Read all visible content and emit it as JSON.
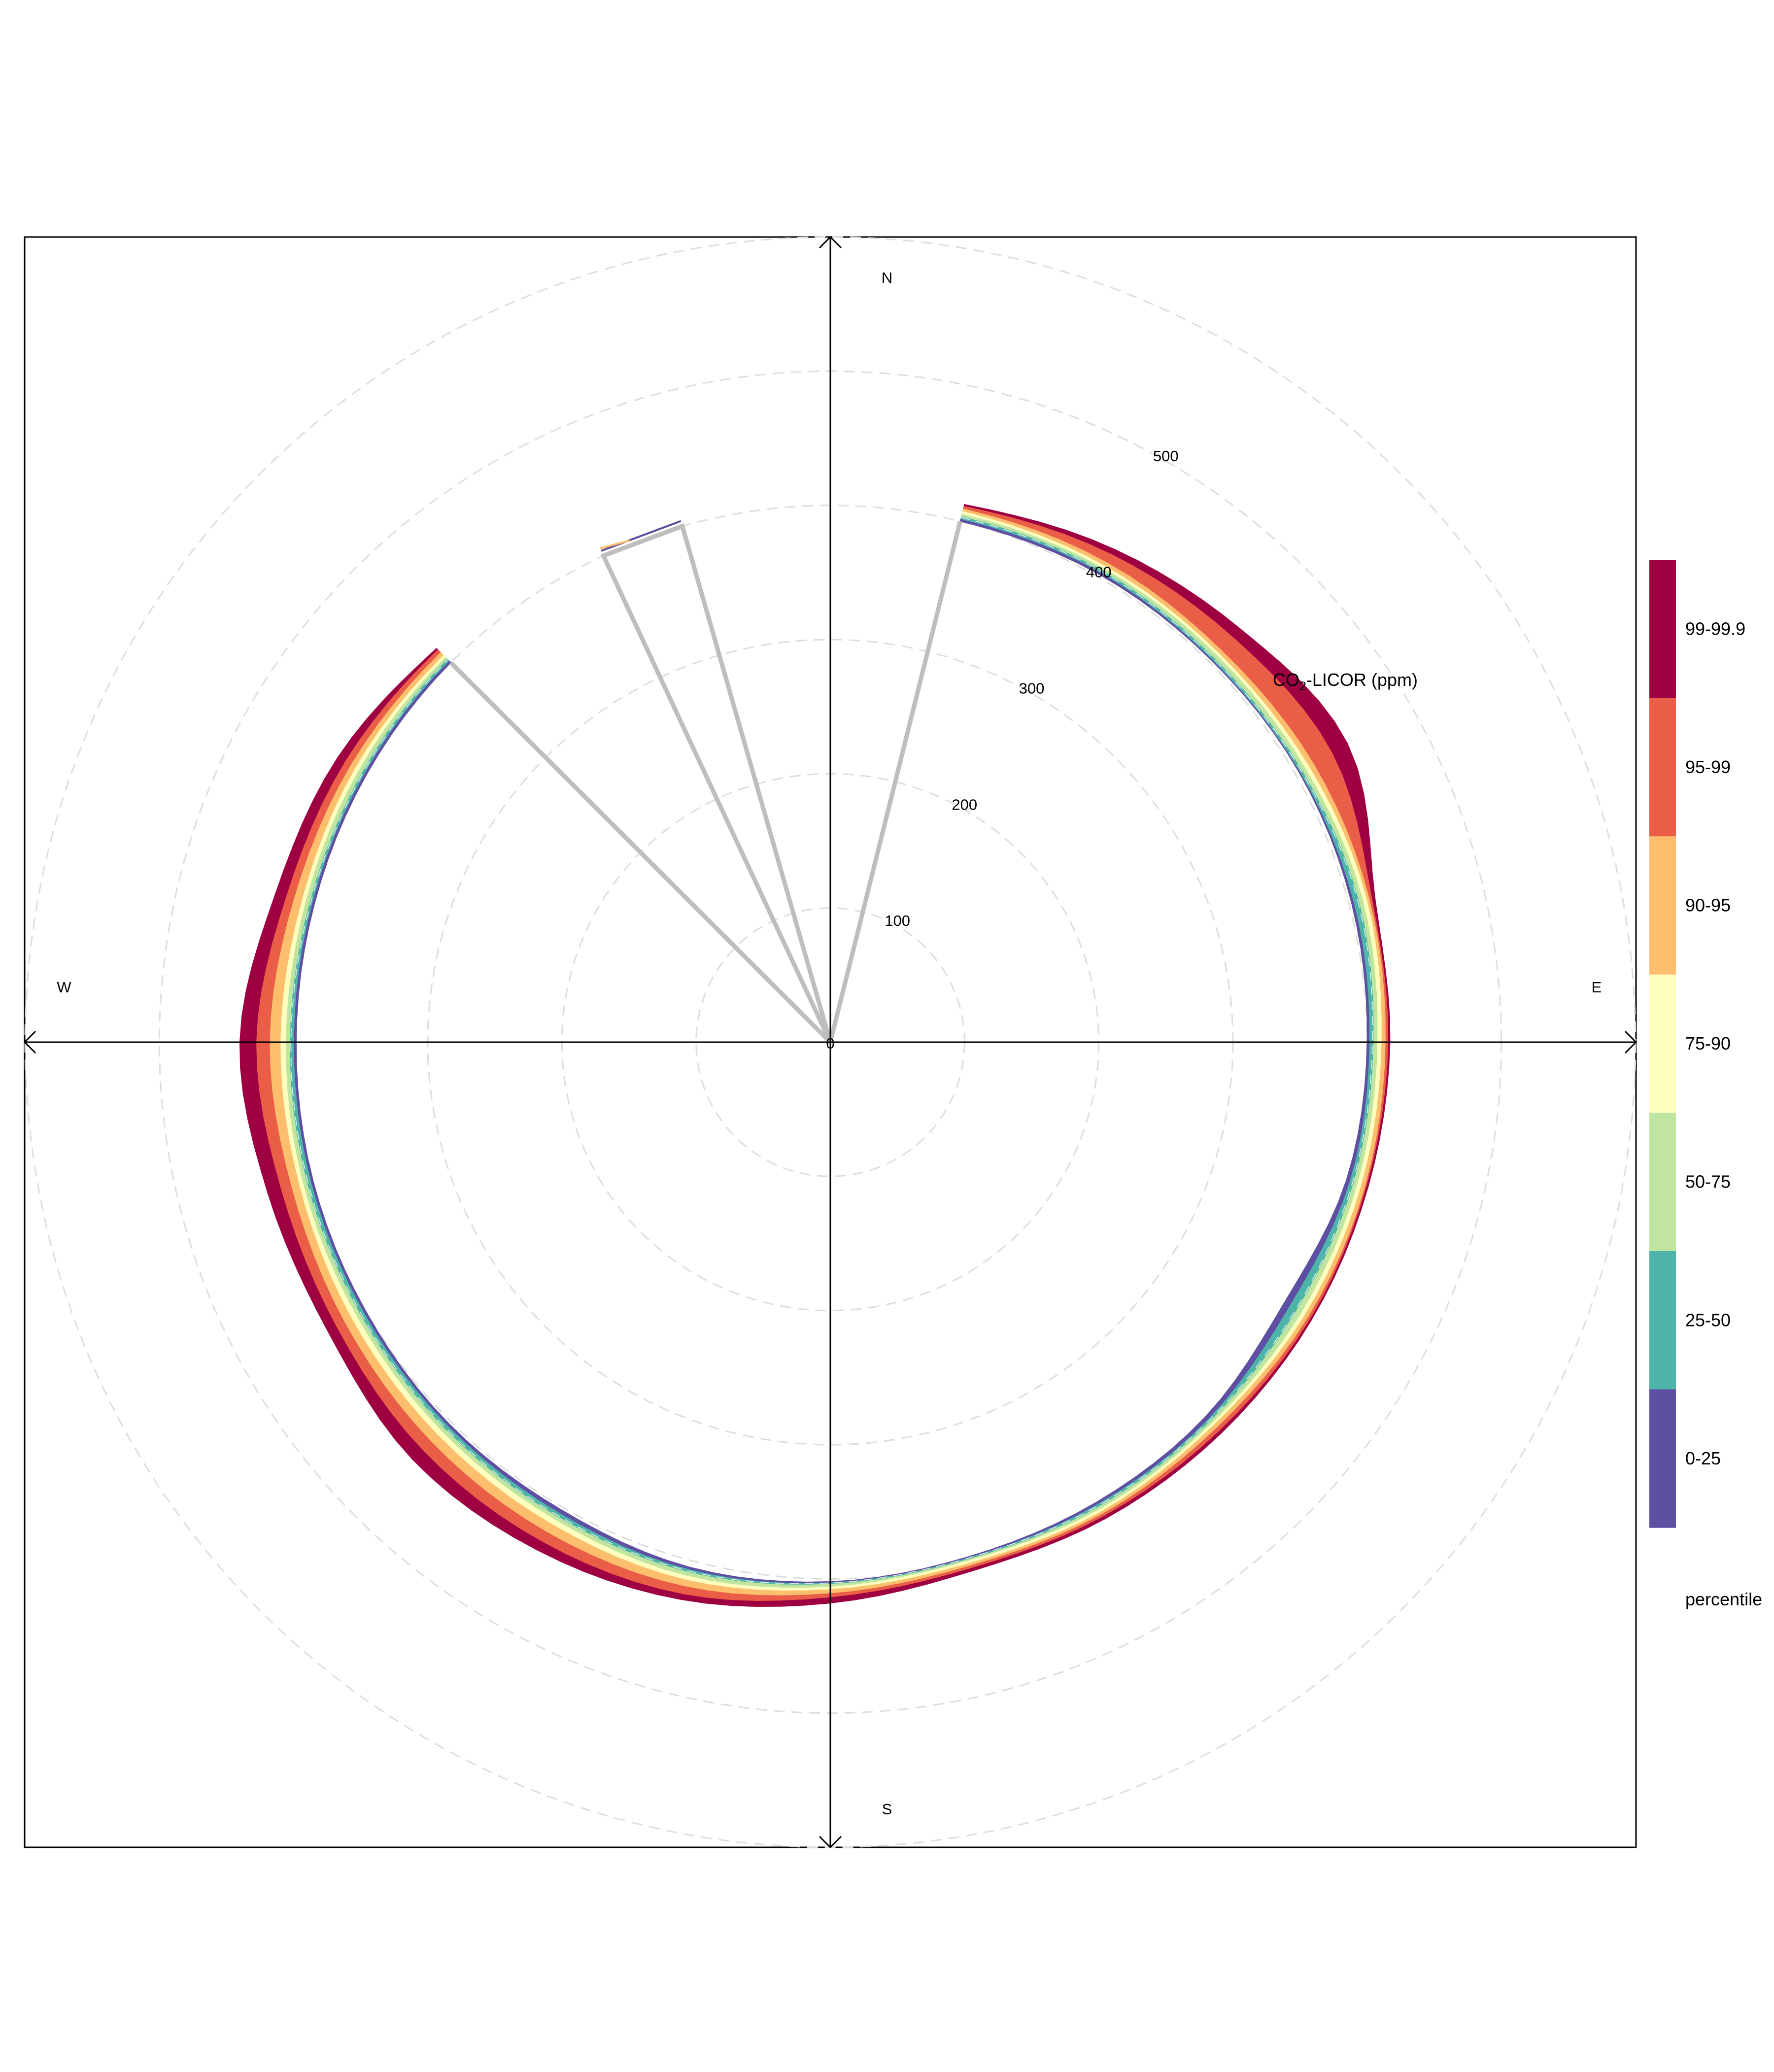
{
  "chart_data": {
    "type": "polar-percentile-rose",
    "title": "",
    "variable_label": {
      "main": "CO",
      "subscript": "2",
      "rest": "-LICOR (ppm)"
    },
    "radial_axis": {
      "range": [
        0,
        600
      ],
      "ticks": [
        0,
        100,
        200,
        300,
        400,
        500
      ],
      "tick_labels": [
        "0",
        "100",
        "200",
        "300",
        "400",
        "500"
      ],
      "grid_circles": [
        100,
        200,
        300,
        400,
        500,
        600
      ]
    },
    "directions": {
      "north": "N",
      "east": "E",
      "south": "S",
      "west": "W"
    },
    "legend": {
      "title": "percentile",
      "placement": "right",
      "entries": [
        {
          "label": "99-99.9",
          "color": "#9E0142"
        },
        {
          "label": "95-99",
          "color": "#EA5E48"
        },
        {
          "label": "90-95",
          "color": "#FDBE6E"
        },
        {
          "label": "75-90",
          "color": "#FEFFBF"
        },
        {
          "label": "50-75",
          "color": "#BFE5A0"
        },
        {
          "label": "25-50",
          "color": "#4EB3A9"
        },
        {
          "label": "0-25",
          "color": "#5E4FA2"
        }
      ]
    },
    "band_colors_inner_to_outer": [
      "#5E4FA2",
      "#4EB3A9",
      "#BFE5A0",
      "#FEFFBF",
      "#FDBE6E",
      "#EA5E48",
      "#9E0142"
    ],
    "gap_outline_color": "#BEBEBE",
    "wind_direction_deg": [
      14,
      30,
      45,
      60,
      75,
      90,
      105,
      120,
      135,
      150,
      165,
      180,
      195,
      210,
      225,
      240,
      255,
      270,
      285,
      300,
      315
    ],
    "percentile_curves": {
      "p0": [
        400,
        402,
        402,
        403,
        402,
        400,
        398,
        390,
        395,
        396,
        397,
        402,
        405,
        402,
        402,
        400,
        399,
        398,
        398,
        399,
        400
      ],
      "p25": [
        402,
        404,
        403,
        404,
        404,
        402,
        401,
        395,
        398,
        398,
        398,
        403,
        407,
        405,
        404,
        402,
        401,
        400,
        400,
        401,
        402
      ],
      "p50": [
        404,
        406,
        405,
        406,
        408,
        405,
        404,
        401,
        400,
        400,
        399,
        404,
        409,
        408,
        407,
        405,
        404,
        403,
        402,
        403,
        404
      ],
      "p75": [
        406,
        408,
        408,
        409,
        411,
        408,
        407,
        405,
        402,
        402,
        400,
        406,
        412,
        411,
        410,
        408,
        407,
        406,
        405,
        406,
        406
      ],
      "p90": [
        408,
        410,
        410,
        412,
        414,
        411,
        410,
        408,
        404,
        404,
        402,
        408,
        415,
        415,
        414,
        412,
        410,
        410,
        408,
        409,
        408
      ],
      "p95": [
        410,
        413,
        413,
        416,
        416,
        414,
        413,
        411,
        407,
        406,
        404,
        411,
        420,
        422,
        421,
        418,
        416,
        418,
        414,
        413,
        411
      ],
      "p99": [
        412,
        420,
        426,
        432,
        418,
        416,
        414,
        413,
        410,
        408,
        406,
        414,
        426,
        430,
        430,
        425,
        424,
        428,
        420,
        418,
        414
      ],
      "p99.9": [
        413,
        424,
        434,
        445,
        420,
        417,
        415,
        414,
        412,
        410,
        408,
        418,
        430,
        437,
        440,
        432,
        434,
        440,
        428,
        424,
        415
      ]
    },
    "small_sector": {
      "direction_deg": [
        335,
        344
      ],
      "value": 400
    }
  }
}
